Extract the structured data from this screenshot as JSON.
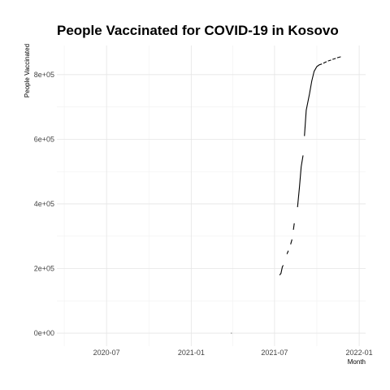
{
  "chart_data": {
    "type": "line",
    "title": "People Vaccinated for COVID-19 in Kosovo",
    "xlabel": "Month",
    "ylabel": "People Vaccinated",
    "x_ticks": [
      "2020-07",
      "2021-01",
      "2021-07",
      "2022-01"
    ],
    "y_ticks": [
      0,
      200000,
      400000,
      600000,
      800000
    ],
    "y_tick_labels": [
      "0e+00",
      "2e+05",
      "4e+05",
      "6e+05",
      "8e+05"
    ],
    "xlim": [
      "2020-03-15",
      "2022-01-15"
    ],
    "ylim": [
      -40000,
      890000
    ],
    "grid": true,
    "series": [
      {
        "segments": [
          [
            [
              "2021-03-29",
              0
            ],
            [
              "2021-03-30",
              0
            ]
          ],
          [
            [
              "2021-07-12",
              180000
            ],
            [
              "2021-07-15",
              185000
            ],
            [
              "2021-07-18",
              205000
            ],
            [
              "2021-07-20",
              210000
            ]
          ],
          [
            [
              "2021-07-28",
              245000
            ],
            [
              "2021-07-31",
              255000
            ]
          ],
          [
            [
              "2021-08-05",
              275000
            ],
            [
              "2021-08-08",
              290000
            ]
          ],
          [
            [
              "2021-08-11",
              320000
            ],
            [
              "2021-08-13",
              340000
            ]
          ],
          [
            [
              "2021-08-20",
              390000
            ],
            [
              "2021-08-24",
              450000
            ],
            [
              "2021-08-28",
              515000
            ],
            [
              "2021-09-01",
              550000
            ]
          ],
          [
            [
              "2021-09-04",
              610000
            ],
            [
              "2021-09-08",
              690000
            ],
            [
              "2021-09-15",
              740000
            ],
            [
              "2021-09-20",
              780000
            ],
            [
              "2021-09-25",
              810000
            ],
            [
              "2021-10-01",
              825000
            ],
            [
              "2021-10-06",
              830000
            ],
            [
              "2021-10-12",
              833000
            ]
          ],
          [
            [
              "2021-10-15",
              835000
            ],
            [
              "2021-10-22",
              840000
            ]
          ],
          [
            [
              "2021-10-25",
              842000
            ],
            [
              "2021-11-01",
              845000
            ]
          ],
          [
            [
              "2021-11-04",
              847000
            ],
            [
              "2021-11-11",
              850000
            ]
          ],
          [
            [
              "2021-11-14",
              852000
            ],
            [
              "2021-11-22",
              855000
            ]
          ]
        ]
      }
    ]
  }
}
